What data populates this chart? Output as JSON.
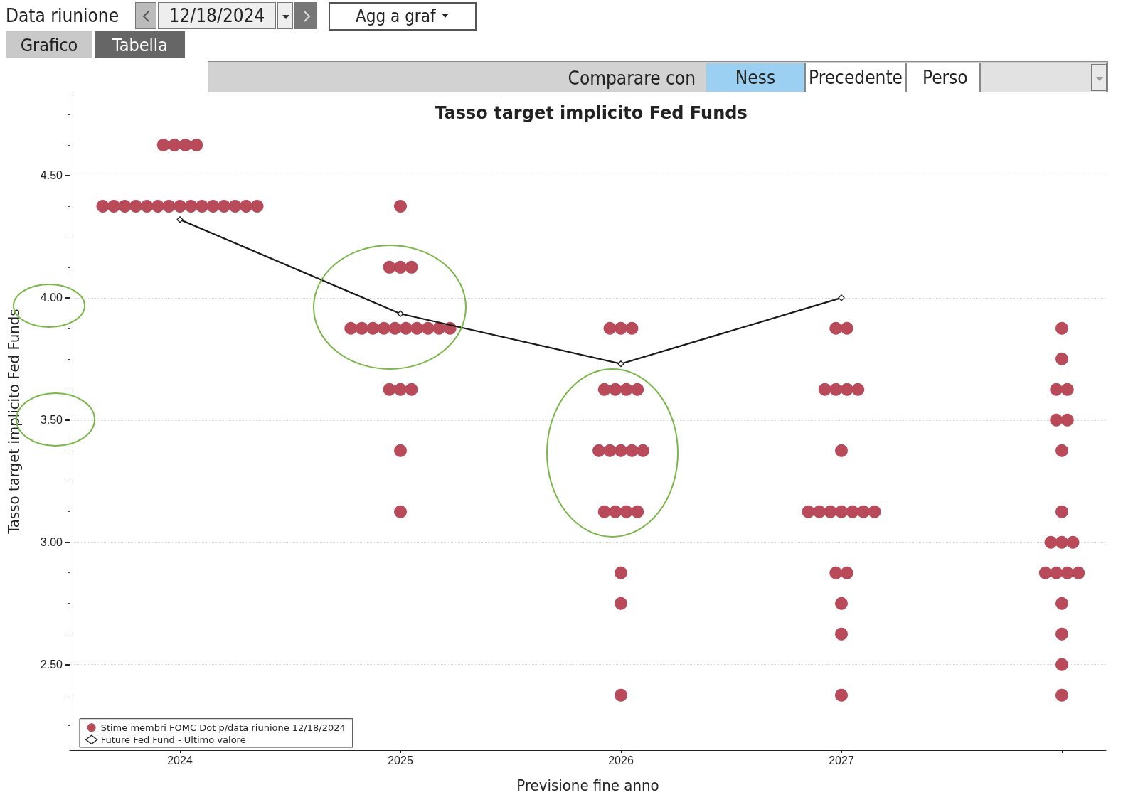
{
  "chart_data": {
    "type": "scatter",
    "title": "Tasso target implicito Fed Funds",
    "xlabel": "Previsione fine anno",
    "ylabel": "Tasso target implicito Fed Funds",
    "xlim": [
      2023.5,
      2028.2
    ],
    "xticks": [
      2024,
      2025,
      2026,
      2027,
      {
        "value": 2028,
        "label": null
      }
    ],
    "series": [
      {
        "name": "Stime membri FOMC Dot p/data riunione 12/18/2024",
        "color": "#b84a5a",
        "marker": "circle",
        "x": [
          2023.925,
          2023.975,
          2024.025,
          2024.075,
          2023.65,
          2023.7,
          2023.75,
          2023.8,
          2023.85,
          2023.9,
          2023.95,
          2024,
          2024.05,
          2024.1,
          2024.15,
          2024.2,
          2024.25,
          2024.3,
          2024.35,
          2025,
          2024.95,
          2025,
          2025.05,
          2024.775,
          2024.825,
          2024.875,
          2024.925,
          2024.975,
          2025.025,
          2025.075,
          2025.125,
          2025.175,
          2025.225,
          2024.95,
          2025,
          2025.05,
          2025,
          2025,
          2025.95,
          2026,
          2026.05,
          2025.925,
          2025.975,
          2026.025,
          2026.075,
          2025.9,
          2025.95,
          2026,
          2026.05,
          2026.1,
          2025.925,
          2025.975,
          2026.025,
          2026.075,
          2026,
          2026,
          2026,
          2026.975,
          2027.025,
          2026.925,
          2026.975,
          2027.025,
          2027.075,
          2027,
          2026.85,
          2026.9,
          2026.95,
          2027,
          2027.05,
          2027.1,
          2027.15,
          2026.975,
          2027.025,
          2027,
          2027,
          2027,
          2028,
          2028,
          2027.975,
          2028.025,
          2027.975,
          2028.025,
          2028,
          2028,
          2027.95,
          2028,
          2028.05,
          2027.925,
          2027.975,
          2028.025,
          2028.075,
          2028,
          2028,
          2028,
          2028
        ],
        "values": [
          4.625,
          4.625,
          4.625,
          4.625,
          4.375,
          4.375,
          4.375,
          4.375,
          4.375,
          4.375,
          4.375,
          4.375,
          4.375,
          4.375,
          4.375,
          4.375,
          4.375,
          4.375,
          4.375,
          4.375,
          4.125,
          4.125,
          4.125,
          3.875,
          3.875,
          3.875,
          3.875,
          3.875,
          3.875,
          3.875,
          3.875,
          3.875,
          3.875,
          3.625,
          3.625,
          3.625,
          3.375,
          3.125,
          3.875,
          3.875,
          3.875,
          3.625,
          3.625,
          3.625,
          3.625,
          3.375,
          3.375,
          3.375,
          3.375,
          3.375,
          3.125,
          3.125,
          3.125,
          3.125,
          2.875,
          2.75,
          2.375,
          3.875,
          3.875,
          3.625,
          3.625,
          3.625,
          3.625,
          3.375,
          3.125,
          3.125,
          3.125,
          3.125,
          3.125,
          3.125,
          3.125,
          2.875,
          2.875,
          2.75,
          2.625,
          2.375,
          3.875,
          3.75,
          3.625,
          3.625,
          3.5,
          3.5,
          3.375,
          3.125,
          3.0,
          3.0,
          3.0,
          2.875,
          2.875,
          2.875,
          2.875,
          2.75,
          2.625,
          2.5,
          2.375
        ]
      },
      {
        "type": "line",
        "name": "Future Fed Fund - Ultimo valore",
        "color": "#1a1a1a",
        "marker": "diamond",
        "line_style": "solid",
        "x": [
          2024,
          2025,
          2026,
          2027
        ],
        "values": [
          4.32,
          3.935,
          3.73,
          4.0
        ]
      }
    ],
    "ylim": [
      2.15,
      4.84
    ],
    "yticks": [
      {
        "value": 2.5,
        "label": "2.50"
      },
      {
        "value": 3,
        "label": "3.00"
      },
      {
        "value": 3.5,
        "label": "3.50"
      },
      {
        "value": 4,
        "label": "4.00"
      },
      {
        "value": 4.5,
        "label": "4.50"
      }
    ],
    "grid": "y",
    "legend": "bottom left",
    "annotations": [
      "Data riunione",
      "12/18/2024",
      "Agg a graf",
      "Grafico",
      "Tabella",
      "Comparare con",
      "Ness",
      "Precedente",
      "Perso"
    ]
  }
}
